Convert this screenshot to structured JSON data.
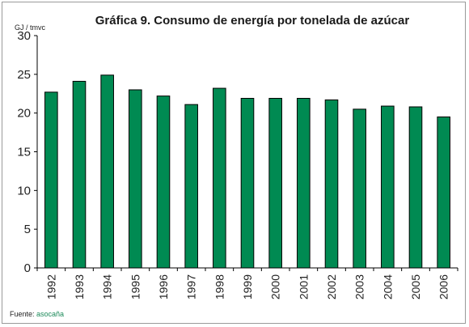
{
  "chart_data": {
    "type": "bar",
    "title": "Gráfica 9. Consumo de energía por tonelada de azúcar",
    "ylabel": "GJ / tmvc",
    "xlabel": "",
    "categories": [
      "1992",
      "1993",
      "1994",
      "1995",
      "1996",
      "1997",
      "1998",
      "1999",
      "2000",
      "2001",
      "2002",
      "2003",
      "2004",
      "2005",
      "2006"
    ],
    "values": [
      22.7,
      24.1,
      24.9,
      23.0,
      22.2,
      21.1,
      23.2,
      21.9,
      21.9,
      21.9,
      21.7,
      20.5,
      20.9,
      20.8,
      19.5
    ],
    "ylim": [
      0,
      30
    ],
    "yticks": [
      0,
      5,
      10,
      15,
      20,
      25,
      30
    ],
    "bar_color": "#008a52",
    "grid": false
  },
  "source": {
    "prefix": "Fuente: ",
    "name": "asocaña"
  }
}
